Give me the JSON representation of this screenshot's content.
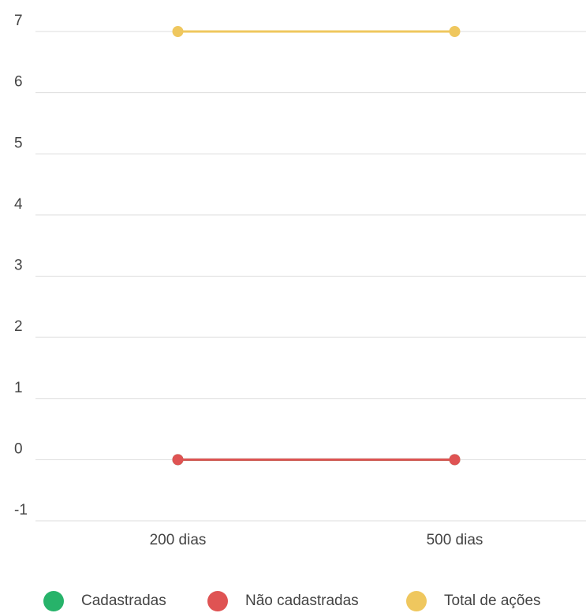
{
  "chart_data": {
    "type": "line",
    "categories": [
      "200 dias",
      "500 dias"
    ],
    "series": [
      {
        "name": "Cadastradas",
        "color": "#27b36a",
        "values": [
          0,
          0
        ]
      },
      {
        "name": "Não cadastradas",
        "color": "#df5353",
        "values": [
          0,
          0
        ]
      },
      {
        "name": "Total de ações",
        "color": "#efc75e",
        "values": [
          7,
          7
        ]
      }
    ],
    "ylim": [
      -1,
      7
    ],
    "yticks": [
      -1,
      0,
      1,
      2,
      3,
      4,
      5,
      6,
      7
    ],
    "grid": true,
    "legend": "bottom"
  }
}
